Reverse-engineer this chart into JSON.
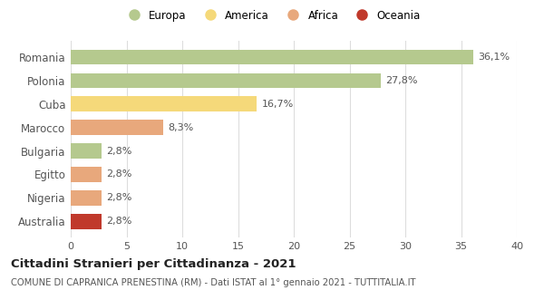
{
  "categories": [
    "Romania",
    "Polonia",
    "Cuba",
    "Marocco",
    "Bulgaria",
    "Egitto",
    "Nigeria",
    "Australia"
  ],
  "values": [
    36.1,
    27.8,
    16.7,
    8.3,
    2.8,
    2.8,
    2.8,
    2.8
  ],
  "labels": [
    "36,1%",
    "27,8%",
    "16,7%",
    "8,3%",
    "2,8%",
    "2,8%",
    "2,8%",
    "2,8%"
  ],
  "colors": [
    "#b5c98e",
    "#b5c98e",
    "#f5d97a",
    "#e8a87c",
    "#b5c98e",
    "#e8a87c",
    "#e8a87c",
    "#c0392b"
  ],
  "legend_labels": [
    "Europa",
    "America",
    "Africa",
    "Oceania"
  ],
  "legend_colors": [
    "#b5c98e",
    "#f5d97a",
    "#e8a87c",
    "#c0392b"
  ],
  "title": "Cittadini Stranieri per Cittadinanza - 2021",
  "subtitle": "COMUNE DI CAPRANICA PRENESTINA (RM) - Dati ISTAT al 1° gennaio 2021 - TUTTITALIA.IT",
  "xlim": [
    0,
    40
  ],
  "xticks": [
    0,
    5,
    10,
    15,
    20,
    25,
    30,
    35,
    40
  ],
  "background_color": "#ffffff",
  "grid_color": "#dddddd"
}
